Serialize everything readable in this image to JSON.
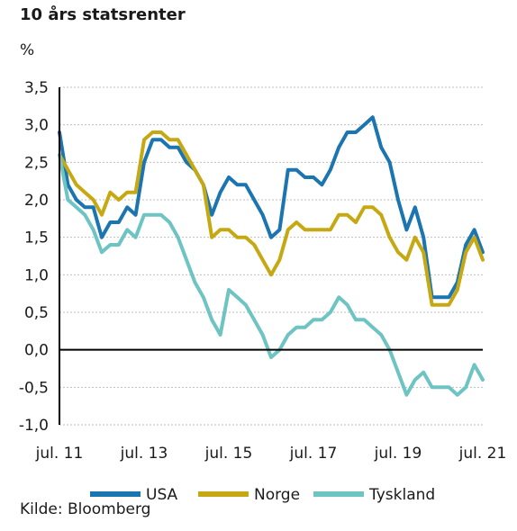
{
  "chart_data": {
    "type": "line",
    "title": "10 års statsrenter",
    "ylabel": "%",
    "source": "Kilde: Bloomberg",
    "ylim": [
      -1.0,
      3.5
    ],
    "xlim": [
      2011.5,
      2021.5
    ],
    "y_ticks": [
      "3,5",
      "3,0",
      "2,5",
      "2,0",
      "1,5",
      "1,0",
      "0,5",
      "0,0",
      "-0,5",
      "-1,0"
    ],
    "y_tick_values": [
      3.5,
      3.0,
      2.5,
      2.0,
      1.5,
      1.0,
      0.5,
      0.0,
      -0.5,
      -1.0
    ],
    "x_ticks": [
      "jul. 11",
      "jul. 13",
      "jul. 15",
      "jul. 17",
      "jul. 19",
      "jul. 21"
    ],
    "x_tick_values": [
      2011.5,
      2013.5,
      2015.5,
      2017.5,
      2019.5,
      2021.5
    ],
    "grid": true,
    "legend_position": "bottom",
    "series": [
      {
        "name": "USA",
        "color": "#1b75b0",
        "x": [
          2011.5,
          2011.7,
          2011.9,
          2012.1,
          2012.3,
          2012.5,
          2012.7,
          2012.9,
          2013.1,
          2013.3,
          2013.5,
          2013.7,
          2013.9,
          2014.1,
          2014.3,
          2014.5,
          2014.7,
          2014.9,
          2015.1,
          2015.3,
          2015.5,
          2015.7,
          2015.9,
          2016.1,
          2016.3,
          2016.5,
          2016.7,
          2016.9,
          2017.1,
          2017.3,
          2017.5,
          2017.7,
          2017.9,
          2018.1,
          2018.3,
          2018.5,
          2018.7,
          2018.9,
          2019.1,
          2019.3,
          2019.5,
          2019.7,
          2019.9,
          2020.1,
          2020.3,
          2020.5,
          2020.7,
          2020.9,
          2021.1,
          2021.3,
          2021.5
        ],
        "values": [
          2.9,
          2.2,
          2.0,
          1.9,
          1.9,
          1.5,
          1.7,
          1.7,
          1.9,
          1.8,
          2.5,
          2.8,
          2.8,
          2.7,
          2.7,
          2.5,
          2.4,
          2.2,
          1.8,
          2.1,
          2.3,
          2.2,
          2.2,
          2.0,
          1.8,
          1.5,
          1.6,
          2.4,
          2.4,
          2.3,
          2.3,
          2.2,
          2.4,
          2.7,
          2.9,
          2.9,
          3.0,
          3.1,
          2.7,
          2.5,
          2.0,
          1.6,
          1.9,
          1.5,
          0.7,
          0.7,
          0.7,
          0.9,
          1.4,
          1.6,
          1.3
        ]
      },
      {
        "name": "Norge",
        "color": "#c6a812",
        "x": [
          2011.5,
          2011.7,
          2011.9,
          2012.1,
          2012.3,
          2012.5,
          2012.7,
          2012.9,
          2013.1,
          2013.3,
          2013.5,
          2013.7,
          2013.9,
          2014.1,
          2014.3,
          2014.5,
          2014.7,
          2014.9,
          2015.1,
          2015.3,
          2015.5,
          2015.7,
          2015.9,
          2016.1,
          2016.3,
          2016.5,
          2016.7,
          2016.9,
          2017.1,
          2017.3,
          2017.5,
          2017.7,
          2017.9,
          2018.1,
          2018.3,
          2018.5,
          2018.7,
          2018.9,
          2019.1,
          2019.3,
          2019.5,
          2019.7,
          2019.9,
          2020.1,
          2020.3,
          2020.5,
          2020.7,
          2020.9,
          2021.1,
          2021.3,
          2021.5
        ],
        "values": [
          2.6,
          2.4,
          2.2,
          2.1,
          2.0,
          1.8,
          2.1,
          2.0,
          2.1,
          2.1,
          2.8,
          2.9,
          2.9,
          2.8,
          2.8,
          2.6,
          2.4,
          2.2,
          1.5,
          1.6,
          1.6,
          1.5,
          1.5,
          1.4,
          1.2,
          1.0,
          1.2,
          1.6,
          1.7,
          1.6,
          1.6,
          1.6,
          1.6,
          1.8,
          1.8,
          1.7,
          1.9,
          1.9,
          1.8,
          1.5,
          1.3,
          1.2,
          1.5,
          1.3,
          0.6,
          0.6,
          0.6,
          0.8,
          1.3,
          1.5,
          1.2
        ]
      },
      {
        "name": "Tyskland",
        "color": "#6ec4c2",
        "x": [
          2011.5,
          2011.7,
          2011.9,
          2012.1,
          2012.3,
          2012.5,
          2012.7,
          2012.9,
          2013.1,
          2013.3,
          2013.5,
          2013.7,
          2013.9,
          2014.1,
          2014.3,
          2014.5,
          2014.7,
          2014.9,
          2015.1,
          2015.3,
          2015.5,
          2015.7,
          2015.9,
          2016.1,
          2016.3,
          2016.5,
          2016.7,
          2016.9,
          2017.1,
          2017.3,
          2017.5,
          2017.7,
          2017.9,
          2018.1,
          2018.3,
          2018.5,
          2018.7,
          2018.9,
          2019.1,
          2019.3,
          2019.5,
          2019.7,
          2019.9,
          2020.1,
          2020.3,
          2020.5,
          2020.7,
          2020.9,
          2021.1,
          2021.3,
          2021.5
        ],
        "values": [
          2.6,
          2.0,
          1.9,
          1.8,
          1.6,
          1.3,
          1.4,
          1.4,
          1.6,
          1.5,
          1.8,
          1.8,
          1.8,
          1.7,
          1.5,
          1.2,
          0.9,
          0.7,
          0.4,
          0.2,
          0.8,
          0.7,
          0.6,
          0.4,
          0.2,
          -0.1,
          0.0,
          0.2,
          0.3,
          0.3,
          0.4,
          0.4,
          0.5,
          0.7,
          0.6,
          0.4,
          0.4,
          0.3,
          0.2,
          0.0,
          -0.3,
          -0.6,
          -0.4,
          -0.3,
          -0.5,
          -0.5,
          -0.5,
          -0.6,
          -0.5,
          -0.2,
          -0.4
        ]
      }
    ]
  }
}
